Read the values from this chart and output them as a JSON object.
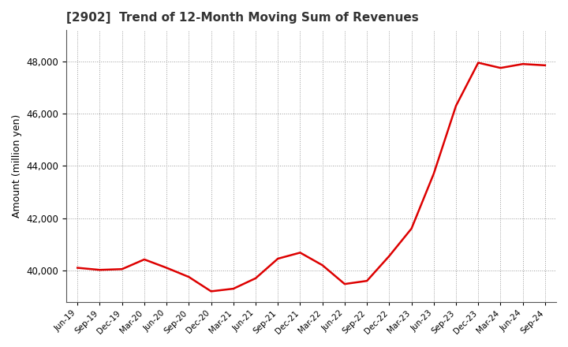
{
  "title": "[2902]  Trend of 12-Month Moving Sum of Revenues",
  "ylabel": "Amount (million yen)",
  "line_color": "#dd0000",
  "background_color": "#ffffff",
  "plot_bg_color": "#ffffff",
  "grid_color": "#999999",
  "ylim": [
    38800,
    49200
  ],
  "yticks": [
    40000,
    42000,
    44000,
    46000,
    48000
  ],
  "x_labels": [
    "Jun-19",
    "Sep-19",
    "Dec-19",
    "Mar-20",
    "Jun-20",
    "Sep-20",
    "Dec-20",
    "Mar-21",
    "Jun-21",
    "Sep-21",
    "Dec-21",
    "Mar-22",
    "Jun-22",
    "Sep-22",
    "Dec-22",
    "Mar-23",
    "Jun-23",
    "Sep-23",
    "Dec-23",
    "Mar-24",
    "Jun-24",
    "Sep-24"
  ],
  "values": [
    40100,
    40020,
    40050,
    40420,
    40100,
    39750,
    39200,
    39300,
    39700,
    40450,
    40680,
    40200,
    39480,
    39600,
    40550,
    41600,
    43700,
    46300,
    47950,
    47750,
    47900,
    47850
  ]
}
